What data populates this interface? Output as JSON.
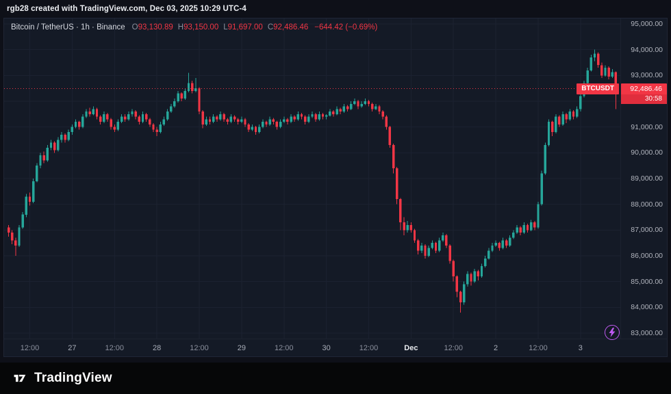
{
  "top_bar": {
    "text": "rgb28 created with TradingView.com, Dec 03, 2025 10:29 UTC-4"
  },
  "header": {
    "title": "Bitcoin / TetherUS · 1h · Binance",
    "o_label": "O",
    "o": "93,130.89",
    "h_label": "H",
    "h": "93,150.00",
    "l_label": "L",
    "l": "91,697.00",
    "c_label": "C",
    "c": "92,486.46",
    "change": "−644.42 (−0.69%)"
  },
  "price_label": {
    "symbol": "BTCUSDT",
    "price": "92,486.46",
    "countdown": "30:58",
    "color": "#f23645"
  },
  "price_scale": {
    "ticks": [
      {
        "price": 95000,
        "label": "95,000.00"
      },
      {
        "price": 94000,
        "label": "94,000.00"
      },
      {
        "price": 93000,
        "label": "93,000.00"
      },
      {
        "price": 91000,
        "label": "91,000.00"
      },
      {
        "price": 90000,
        "label": "90,000.00"
      },
      {
        "price": 89000,
        "label": "89,000.00"
      },
      {
        "price": 88000,
        "label": "88,000.00"
      },
      {
        "price": 87000,
        "label": "87,000.00"
      },
      {
        "price": 86000,
        "label": "86,000.00"
      },
      {
        "price": 85000,
        "label": "85,000.00"
      },
      {
        "price": 84000,
        "label": "84,000.00"
      },
      {
        "price": 83000,
        "label": "83,000.00"
      }
    ]
  },
  "time_axis": [
    {
      "i": 6,
      "label": "12:00",
      "cls": "minor"
    },
    {
      "i": 18,
      "label": "27",
      "cls": "major"
    },
    {
      "i": 30,
      "label": "12:00",
      "cls": "minor"
    },
    {
      "i": 42,
      "label": "28",
      "cls": "major"
    },
    {
      "i": 54,
      "label": "12:00",
      "cls": "minor"
    },
    {
      "i": 66,
      "label": "29",
      "cls": "major"
    },
    {
      "i": 78,
      "label": "12:00",
      "cls": "minor"
    },
    {
      "i": 90,
      "label": "30",
      "cls": "major"
    },
    {
      "i": 102,
      "label": "12:00",
      "cls": "minor"
    },
    {
      "i": 114,
      "label": "Dec",
      "cls": "month"
    },
    {
      "i": 126,
      "label": "12:00",
      "cls": "minor"
    },
    {
      "i": 138,
      "label": "2",
      "cls": "major"
    },
    {
      "i": 150,
      "label": "12:00",
      "cls": "minor"
    },
    {
      "i": 162,
      "label": "3",
      "cls": "major"
    }
  ],
  "icons": {
    "flash": "lightning-bolt",
    "flash_color": "#bf5af2"
  },
  "footer": {
    "brand": "TradingView"
  },
  "chart_data": {
    "type": "candlestick",
    "symbol": "BTCUSDT",
    "exchange": "Binance",
    "interval": "1h",
    "title": "Bitcoin / TetherUS · 1h · Binance",
    "ylim": [
      83000,
      95000
    ],
    "grid_prices": [
      83000,
      84000,
      85000,
      86000,
      87000,
      88000,
      89000,
      90000,
      91000,
      92000,
      93000,
      94000,
      95000
    ],
    "last_price": 92486.46,
    "colors": {
      "up": "#26a69a",
      "down": "#f23645"
    },
    "candles": [
      [
        87100,
        87200,
        86750,
        86900
      ],
      [
        86900,
        87000,
        86450,
        86600
      ],
      [
        86600,
        86700,
        86000,
        86400
      ],
      [
        86400,
        87200,
        86350,
        87100
      ],
      [
        87100,
        87700,
        87050,
        87600
      ],
      [
        87600,
        88400,
        87500,
        88300
      ],
      [
        88300,
        88450,
        87950,
        88100
      ],
      [
        88100,
        89000,
        88050,
        88900
      ],
      [
        88900,
        89600,
        88850,
        89500
      ],
      [
        89500,
        90000,
        89400,
        89900
      ],
      [
        89900,
        90050,
        89600,
        89700
      ],
      [
        89700,
        90300,
        89650,
        90200
      ],
      [
        90200,
        90500,
        90100,
        90400
      ],
      [
        90400,
        90450,
        90000,
        90100
      ],
      [
        90100,
        90600,
        90050,
        90500
      ],
      [
        90500,
        90800,
        90400,
        90700
      ],
      [
        90700,
        90750,
        90400,
        90500
      ],
      [
        90500,
        90900,
        90450,
        90800
      ],
      [
        90800,
        91100,
        90700,
        91000
      ],
      [
        91000,
        91300,
        90950,
        91200
      ],
      [
        91200,
        91250,
        90900,
        91000
      ],
      [
        91000,
        91500,
        90950,
        91400
      ],
      [
        91400,
        91700,
        91350,
        91600
      ],
      [
        91600,
        91750,
        91400,
        91500
      ],
      [
        91500,
        91800,
        91450,
        91700
      ],
      [
        91700,
        91750,
        91300,
        91400
      ],
      [
        91400,
        91450,
        91100,
        91200
      ],
      [
        91200,
        91600,
        91150,
        91500
      ],
      [
        91500,
        91550,
        91200,
        91300
      ],
      [
        91300,
        91350,
        90900,
        91000
      ],
      [
        91000,
        91100,
        90800,
        90900
      ],
      [
        90900,
        91300,
        90850,
        91200
      ],
      [
        91200,
        91500,
        91150,
        91400
      ],
      [
        91400,
        91500,
        91200,
        91300
      ],
      [
        91300,
        91600,
        91250,
        91500
      ],
      [
        91500,
        91700,
        91400,
        91600
      ],
      [
        91600,
        91650,
        91300,
        91400
      ],
      [
        91400,
        91450,
        91100,
        91200
      ],
      [
        91200,
        91600,
        91150,
        91500
      ],
      [
        91500,
        91550,
        91200,
        91300
      ],
      [
        91300,
        91350,
        91000,
        91100
      ],
      [
        91100,
        91150,
        90800,
        90900
      ],
      [
        90900,
        91000,
        90650,
        90800
      ],
      [
        90800,
        91200,
        90750,
        91100
      ],
      [
        91100,
        91400,
        91050,
        91300
      ],
      [
        91300,
        91700,
        91250,
        91600
      ],
      [
        91600,
        91900,
        91550,
        91800
      ],
      [
        91800,
        92100,
        91750,
        92000
      ],
      [
        92000,
        92400,
        91950,
        92300
      ],
      [
        92300,
        92350,
        92000,
        92100
      ],
      [
        92100,
        92500,
        92050,
        92400
      ],
      [
        92400,
        93100,
        92350,
        92700
      ],
      [
        92700,
        92800,
        92300,
        92400
      ],
      [
        92400,
        92900,
        92350,
        92500
      ],
      [
        92500,
        92550,
        91500,
        91600
      ],
      [
        91600,
        91650,
        90950,
        91100
      ],
      [
        91100,
        91400,
        91050,
        91300
      ],
      [
        91300,
        91400,
        91100,
        91200
      ],
      [
        91200,
        91500,
        91150,
        91400
      ],
      [
        91400,
        91450,
        91200,
        91300
      ],
      [
        91300,
        91600,
        91250,
        91500
      ],
      [
        91500,
        91550,
        91200,
        91300
      ],
      [
        91300,
        91350,
        91100,
        91200
      ],
      [
        91200,
        91500,
        91150,
        91400
      ],
      [
        91400,
        91450,
        91200,
        91300
      ],
      [
        91300,
        91350,
        91100,
        91200
      ],
      [
        91200,
        91400,
        91150,
        91300
      ],
      [
        91300,
        91350,
        91000,
        91100
      ],
      [
        91100,
        91150,
        90800,
        90900
      ],
      [
        90900,
        91100,
        90850,
        91000
      ],
      [
        91000,
        91050,
        90700,
        90800
      ],
      [
        90800,
        91100,
        90750,
        91000
      ],
      [
        91000,
        91300,
        90950,
        91200
      ],
      [
        91200,
        91250,
        91000,
        91100
      ],
      [
        91100,
        91400,
        91050,
        91300
      ],
      [
        91300,
        91350,
        91100,
        91200
      ],
      [
        91200,
        91250,
        90900,
        91000
      ],
      [
        91000,
        91300,
        90950,
        91200
      ],
      [
        91200,
        91400,
        91150,
        91300
      ],
      [
        91300,
        91350,
        91100,
        91200
      ],
      [
        91200,
        91500,
        91150,
        91400
      ],
      [
        91400,
        91450,
        91200,
        91300
      ],
      [
        91300,
        91600,
        91250,
        91500
      ],
      [
        91500,
        91550,
        91300,
        91400
      ],
      [
        91400,
        91450,
        91100,
        91200
      ],
      [
        91200,
        91500,
        91150,
        91400
      ],
      [
        91400,
        91600,
        91350,
        91500
      ],
      [
        91500,
        91550,
        91200,
        91300
      ],
      [
        91300,
        91600,
        91250,
        91500
      ],
      [
        91500,
        91550,
        91300,
        91400
      ],
      [
        91400,
        91500,
        91300,
        91450
      ],
      [
        91450,
        91700,
        91400,
        91600
      ],
      [
        91600,
        91650,
        91400,
        91500
      ],
      [
        91500,
        91800,
        91450,
        91700
      ],
      [
        91700,
        91750,
        91500,
        91600
      ],
      [
        91600,
        91900,
        91550,
        91800
      ],
      [
        91800,
        91850,
        91600,
        91700
      ],
      [
        91700,
        92000,
        91650,
        91900
      ],
      [
        91900,
        92100,
        91850,
        92000
      ],
      [
        92000,
        92050,
        91700,
        91800
      ],
      [
        91800,
        92000,
        91750,
        91900
      ],
      [
        91900,
        92100,
        91850,
        92000
      ],
      [
        92000,
        92050,
        91800,
        91900
      ],
      [
        91900,
        91950,
        91600,
        91700
      ],
      [
        91700,
        91900,
        91650,
        91800
      ],
      [
        91800,
        91850,
        91500,
        91600
      ],
      [
        91600,
        91650,
        91300,
        91400
      ],
      [
        91400,
        91450,
        90900,
        91000
      ],
      [
        91000,
        91050,
        90200,
        90300
      ],
      [
        90300,
        90350,
        89200,
        89400
      ],
      [
        89400,
        89450,
        88000,
        88200
      ],
      [
        88200,
        88250,
        87000,
        87300
      ],
      [
        87300,
        87500,
        86800,
        87000
      ],
      [
        87000,
        87350,
        86900,
        87200
      ],
      [
        87200,
        87300,
        86900,
        87000
      ],
      [
        87000,
        87050,
        86500,
        86600
      ],
      [
        86600,
        86650,
        86050,
        86200
      ],
      [
        86200,
        86500,
        86100,
        86400
      ],
      [
        86400,
        86450,
        85900,
        86000
      ],
      [
        86000,
        86400,
        85950,
        86300
      ],
      [
        86300,
        86600,
        86250,
        86500
      ],
      [
        86500,
        86550,
        86100,
        86200
      ],
      [
        86200,
        86700,
        86150,
        86600
      ],
      [
        86600,
        86900,
        86550,
        86800
      ],
      [
        86800,
        86850,
        86300,
        86400
      ],
      [
        86400,
        86450,
        85700,
        85800
      ],
      [
        85800,
        85850,
        85000,
        85200
      ],
      [
        85200,
        85250,
        84400,
        84600
      ],
      [
        84600,
        84650,
        83800,
        84200
      ],
      [
        84200,
        85000,
        84100,
        84900
      ],
      [
        84900,
        85400,
        84800,
        85300
      ],
      [
        85300,
        85350,
        84850,
        85000
      ],
      [
        85000,
        85500,
        84950,
        85400
      ],
      [
        85400,
        85450,
        85050,
        85200
      ],
      [
        85200,
        85700,
        85150,
        85600
      ],
      [
        85600,
        86000,
        85550,
        85900
      ],
      [
        85900,
        86300,
        85850,
        86200
      ],
      [
        86200,
        86500,
        86150,
        86400
      ],
      [
        86400,
        86600,
        86350,
        86500
      ],
      [
        86500,
        86550,
        86200,
        86300
      ],
      [
        86300,
        86700,
        86250,
        86600
      ],
      [
        86600,
        86650,
        86300,
        86400
      ],
      [
        86400,
        86800,
        86350,
        86700
      ],
      [
        86700,
        87000,
        86650,
        86900
      ],
      [
        86900,
        87200,
        86850,
        87100
      ],
      [
        87100,
        87150,
        86800,
        86900
      ],
      [
        86900,
        87300,
        86850,
        87200
      ],
      [
        87200,
        87250,
        86900,
        87000
      ],
      [
        87000,
        87400,
        86950,
        87300
      ],
      [
        87300,
        87350,
        87000,
        87100
      ],
      [
        87100,
        88100,
        87050,
        88000
      ],
      [
        88000,
        89300,
        87950,
        89200
      ],
      [
        89200,
        90400,
        89150,
        90300
      ],
      [
        90300,
        91300,
        90250,
        91200
      ],
      [
        91200,
        91250,
        90650,
        90800
      ],
      [
        90800,
        91500,
        90750,
        91400
      ],
      [
        91400,
        91450,
        91000,
        91100
      ],
      [
        91100,
        91600,
        91050,
        91500
      ],
      [
        91500,
        91550,
        91150,
        91300
      ],
      [
        91300,
        91700,
        91250,
        91600
      ],
      [
        91600,
        91650,
        91300,
        91400
      ],
      [
        91400,
        91800,
        91350,
        91700
      ],
      [
        91700,
        92300,
        91600,
        92200
      ],
      [
        92200,
        92800,
        92150,
        92700
      ],
      [
        92700,
        93300,
        92650,
        93200
      ],
      [
        93200,
        93800,
        93150,
        93700
      ],
      [
        93700,
        94000,
        93550,
        93850
      ],
      [
        93850,
        93900,
        93300,
        93400
      ],
      [
        93400,
        93500,
        92900,
        93000
      ],
      [
        93000,
        93400,
        92950,
        93300
      ],
      [
        93300,
        93350,
        92850,
        92950
      ],
      [
        92950,
        93250,
        92900,
        93130.89
      ],
      [
        93130.89,
        93150,
        91697,
        92486.46
      ]
    ]
  }
}
